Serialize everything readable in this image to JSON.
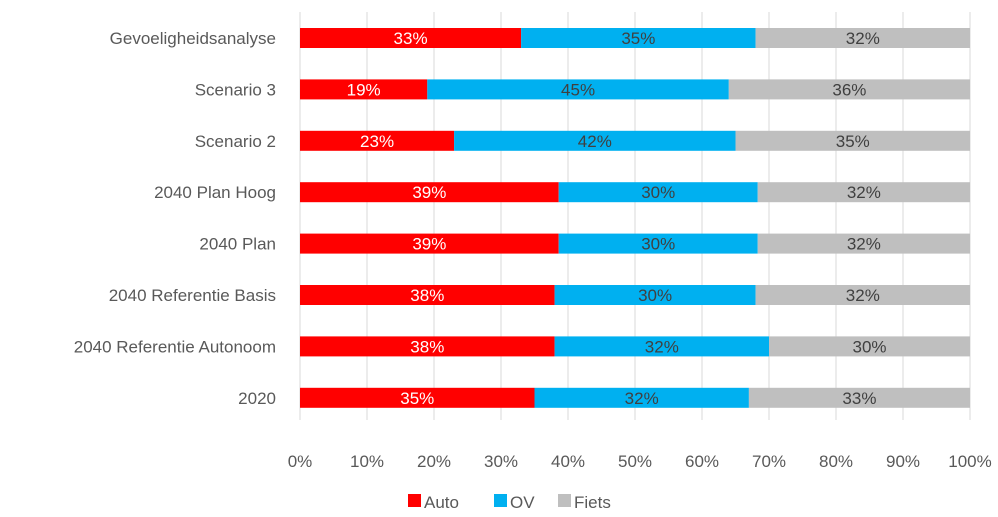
{
  "chart_data": {
    "type": "bar",
    "orientation": "horizontal",
    "stacked": "percent",
    "title": "",
    "xlabel": "",
    "ylabel": "",
    "xlim": [
      0,
      100
    ],
    "x_ticks": [
      "0%",
      "10%",
      "20%",
      "30%",
      "40%",
      "50%",
      "60%",
      "70%",
      "80%",
      "90%",
      "100%"
    ],
    "grid": "vertical",
    "legend_position": "bottom",
    "categories": [
      "Gevoeligheidsanalyse",
      "Scenario 3",
      "Scenario 2",
      "2040 Plan Hoog",
      "2040 Plan",
      "2040 Referentie Basis",
      "2040 Referentie Autonoom",
      "2020"
    ],
    "series": [
      {
        "name": "Auto",
        "color": "#ff0000",
        "label_color": "#ffffff",
        "values": [
          33,
          19,
          23,
          39,
          39,
          38,
          38,
          35
        ],
        "labels": [
          "33%",
          "19%",
          "23%",
          "39%",
          "39%",
          "38%",
          "38%",
          "35%"
        ]
      },
      {
        "name": "OV",
        "color": "#00b0f0",
        "label_color": "#404040",
        "values": [
          35,
          45,
          42,
          30,
          30,
          30,
          32,
          32
        ],
        "labels": [
          "35%",
          "45%",
          "42%",
          "30%",
          "30%",
          "30%",
          "32%",
          "32%"
        ]
      },
      {
        "name": "Fiets",
        "color": "#bfbfbf",
        "label_color": "#404040",
        "values": [
          32,
          36,
          35,
          32,
          32,
          32,
          30,
          33
        ],
        "labels": [
          "32%",
          "36%",
          "35%",
          "32%",
          "32%",
          "32%",
          "30%",
          "33%"
        ]
      }
    ]
  }
}
